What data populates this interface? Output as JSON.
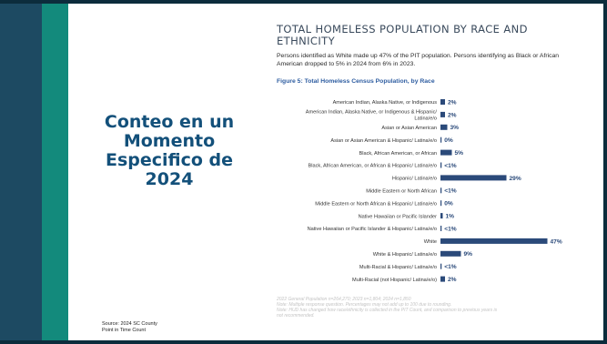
{
  "slide": {
    "left_title_lines": [
      "Conteo en un",
      "Momento",
      "Especifico de",
      "2024"
    ],
    "source_lines": [
      "Source: 2024 SC County",
      "Point in Time Count"
    ],
    "title_lines": [
      "TOTAL HOMELESS POPULATION BY RACE AND",
      "ETHNICITY"
    ],
    "summary": "Persons identified as White made up 47% of the PIT population. Persons identifying as Black or African American dropped to 5% in 2024 from 6% in 2023.",
    "figure_title": "Figure 5: Total Homeless Census Population, by Race",
    "notes": [
      "2022 General Population n=264,270; 2023 n=1,804; 2024 n=1,850",
      "Note: Multiple response question. Percentages may not add up to 100 due to rounding.",
      "Note: HUD has changed how race/ethnicity is collected in the PIT Count, and comparison to previous years is",
      "not recommended."
    ],
    "colors": {
      "bar": "#2b4a7a",
      "title": "#13507a",
      "stripe_dark": "#1d4a62",
      "stripe_teal": "#138a7c"
    }
  },
  "chart_data": {
    "type": "bar",
    "orientation": "horizontal",
    "title": "Figure 5: Total Homeless Census Population, by Race",
    "xlim": [
      0,
      50
    ],
    "grid": false,
    "legend": "none",
    "categories": [
      [
        "American Indian, Alaska Native, or Indigenous"
      ],
      [
        "American Indian, Alaska Native, or Indigenous & Hispanic/",
        "Latina/e/o"
      ],
      [
        "Asian or Asian American"
      ],
      [
        "Asian or Asian American & Hispanic/ Latina/e/o"
      ],
      [
        "Black, African American, or African"
      ],
      [
        "Black, African American, or African & Hispanic/ Latina/e/o"
      ],
      [
        "Hispanic/ Latina/e/o"
      ],
      [
        "Middle Eastern or North African"
      ],
      [
        "Middle Eastern or North African & Hispanic/ Latina/e/o"
      ],
      [
        "Native Hawaiian or Pacific Islander"
      ],
      [
        "Native Hawaiian or Pacific Islander & Hispanic/ Latina/e/o"
      ],
      [
        "White"
      ],
      [
        "White & Hispanic/ Latina/e/o"
      ],
      [
        "Multi-Racial & Hispanic/ Latina/e/o"
      ],
      [
        "Multi-Racial (not Hispanic/ Latina/e/o)"
      ]
    ],
    "values": [
      2,
      2,
      3,
      0,
      5,
      0.5,
      29,
      0.5,
      0,
      1,
      0.5,
      47,
      9,
      0.5,
      2
    ],
    "value_labels": [
      "2%",
      "2%",
      "3%",
      "0%",
      "5%",
      "<1%",
      "29%",
      "<1%",
      "0%",
      "1%",
      "<1%",
      "47%",
      "9%",
      "<1%",
      "2%"
    ]
  }
}
